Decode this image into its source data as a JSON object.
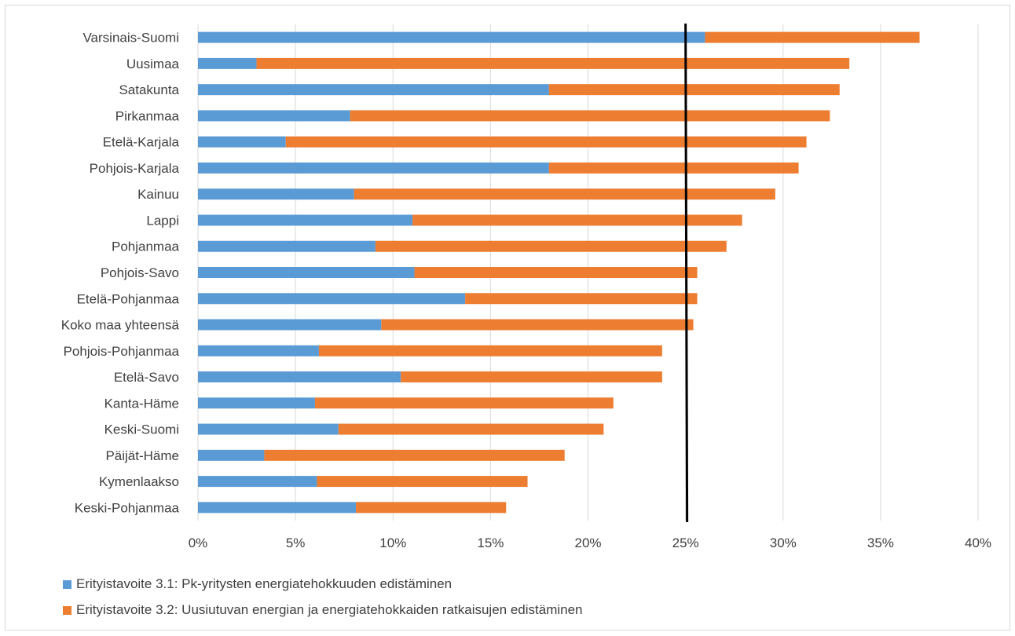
{
  "chart_data": {
    "type": "bar",
    "orientation": "horizontal",
    "stacked": true,
    "categories": [
      "Varsinais-Suomi",
      "Uusimaa",
      "Satakunta",
      "Pirkanmaa",
      "Etelä-Karjala",
      "Pohjois-Karjala",
      "Kainuu",
      "Lappi",
      "Pohjanmaa",
      "Pohjois-Savo",
      "Etelä-Pohjanmaa",
      "Koko maa yhteensä",
      "Pohjois-Pohjanmaa",
      "Etelä-Savo",
      "Kanta-Häme",
      "Keski-Suomi",
      "Päijät-Häme",
      "Kymenlaakso",
      "Keski-Pohjanmaa"
    ],
    "series": [
      {
        "name": "Erityistavoite 3.1: Pk-yritysten energiatehokkuuden edistäminen",
        "color": "#5b9bd5",
        "values": [
          26.0,
          3.0,
          18.0,
          7.8,
          4.5,
          18.0,
          8.0,
          11.0,
          9.1,
          11.1,
          13.7,
          9.4,
          6.2,
          10.4,
          6.0,
          7.2,
          3.4,
          6.1,
          8.1
        ]
      },
      {
        "name": "Erityistavoite 3.2: Uusiutuvan energian ja energiatehokkaiden ratkaisujen edistäminen",
        "color": "#ed7d31",
        "values": [
          11.0,
          30.4,
          14.9,
          24.6,
          26.7,
          12.8,
          21.6,
          16.9,
          18.0,
          14.5,
          11.9,
          16.0,
          17.6,
          13.4,
          15.3,
          13.6,
          15.4,
          10.8,
          7.7
        ]
      }
    ],
    "xlim": [
      0,
      40
    ],
    "xticks": [
      "0%",
      "5%",
      "10%",
      "15%",
      "20%",
      "25%",
      "30%",
      "35%",
      "40%"
    ],
    "tick_values": [
      0,
      5,
      10,
      15,
      20,
      25,
      30,
      35,
      40
    ],
    "reference_line": {
      "value": 25,
      "color": "#000000"
    },
    "grid": true,
    "legend_position": "bottom",
    "title": "",
    "xlabel": "",
    "ylabel": ""
  }
}
